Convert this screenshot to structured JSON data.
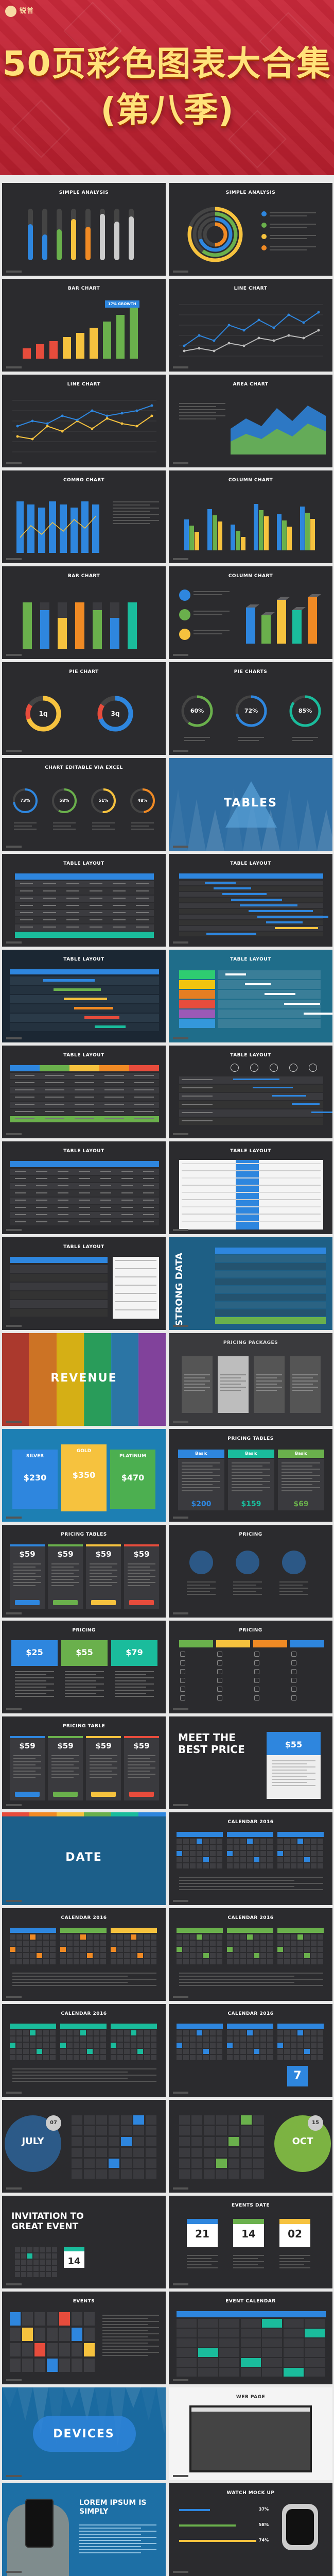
{
  "header": {
    "logo_text": "锐普",
    "title_line1": "50页彩色图表大合集",
    "title_line2": "(第八季)"
  },
  "slides": [
    {
      "title": "SIMPLE ANALYSIS"
    },
    {
      "title": "SIMPLE ANALYSIS"
    },
    {
      "title": "BAR CHART",
      "badge": "17% GROWTH"
    },
    {
      "title": "LINE CHART"
    },
    {
      "title": "LINE CHART"
    },
    {
      "title": "AREA CHART"
    },
    {
      "title": "COMBO CHART"
    },
    {
      "title": "COLUMN CHART"
    },
    {
      "title": "BAR CHART"
    },
    {
      "title": "COLUMN CHART"
    },
    {
      "title": "PIE CHART",
      "values": [
        "1q",
        "3q"
      ]
    },
    {
      "title": "PIE CHARTS",
      "values": [
        "60%",
        "72%",
        "85%"
      ]
    },
    {
      "title": "CHART EDITABLE VIA EXCEL",
      "values": [
        "73%",
        "58%",
        "51%",
        "48%"
      ]
    },
    {
      "title": "TABLES"
    },
    {
      "title": "TABLE LAYOUT"
    },
    {
      "title": "TABLE LAYOUT"
    },
    {
      "title": "TABLE LAYOUT"
    },
    {
      "title": "TABLE LAYOUT"
    },
    {
      "title": "TABLE LAYOUT"
    },
    {
      "title": "TABLE LAYOUT"
    },
    {
      "title": "TABLE LAYOUT"
    },
    {
      "title": "TABLE LAYOUT"
    },
    {
      "title": "TABLE LAYOUT"
    },
    {
      "title": "STRONG DATA"
    },
    {
      "title": "REVENUE"
    },
    {
      "title": "PRICING PACKAGES"
    },
    {
      "title": "SILVER",
      "title2": "GOLD",
      "title3": "PLATINUM",
      "prices": [
        "$230",
        "$350",
        "$470"
      ]
    },
    {
      "title": "PRICING TABLES",
      "prices": [
        "$200",
        "$159",
        "$69"
      ],
      "tiers": [
        "Basic",
        "Basic",
        "Basic"
      ]
    },
    {
      "title": "PRICING TABLES",
      "prices": [
        "$59",
        "$59",
        "$59",
        "$59"
      ]
    },
    {
      "title": "PRICING"
    },
    {
      "title": "PRICING",
      "prices": [
        "$25",
        "$55",
        "$79"
      ]
    },
    {
      "title": "PRICING"
    },
    {
      "title": "PRICING TABLE",
      "prices": [
        "$59",
        "$59",
        "$59",
        "$59"
      ]
    },
    {
      "title": "MEET THE BEST PRICE",
      "price": "$55"
    },
    {
      "title": "DATE"
    },
    {
      "title": "CALENDAR 2016"
    },
    {
      "title": "CALENDAR 2016"
    },
    {
      "title": "CALENDAR 2016"
    },
    {
      "title": "CALENDAR 2016"
    },
    {
      "title": "CALENDAR 2016",
      "big": "7"
    },
    {
      "title": "JULY",
      "sub": "07"
    },
    {
      "title": "OCT",
      "sub": "15"
    },
    {
      "title": "INVITATION TO GREAT EVENT",
      "day": "14"
    },
    {
      "title": "EVENTS DATE",
      "days": [
        "21",
        "14",
        "02"
      ]
    },
    {
      "title": "EVENTS"
    },
    {
      "title": "EVENT CALENDAR"
    },
    {
      "title": "DEVICES"
    },
    {
      "title": "WEB PAGE"
    },
    {
      "title": "LOREM IPSUM IS SIMPLY"
    },
    {
      "title": "WATCH MOCK UP",
      "values": [
        "37%",
        "58%",
        "74%"
      ]
    }
  ],
  "colors": {
    "slide_bg": "#2b2b2e",
    "hero_red": "#c0262f",
    "title_gold": "#ffe27a",
    "blue": "#2e86de",
    "green": "#6ab04c",
    "yellow": "#f6c23e",
    "orange": "#f08a24",
    "red": "#e74c3c",
    "teal": "#1abc9c"
  }
}
